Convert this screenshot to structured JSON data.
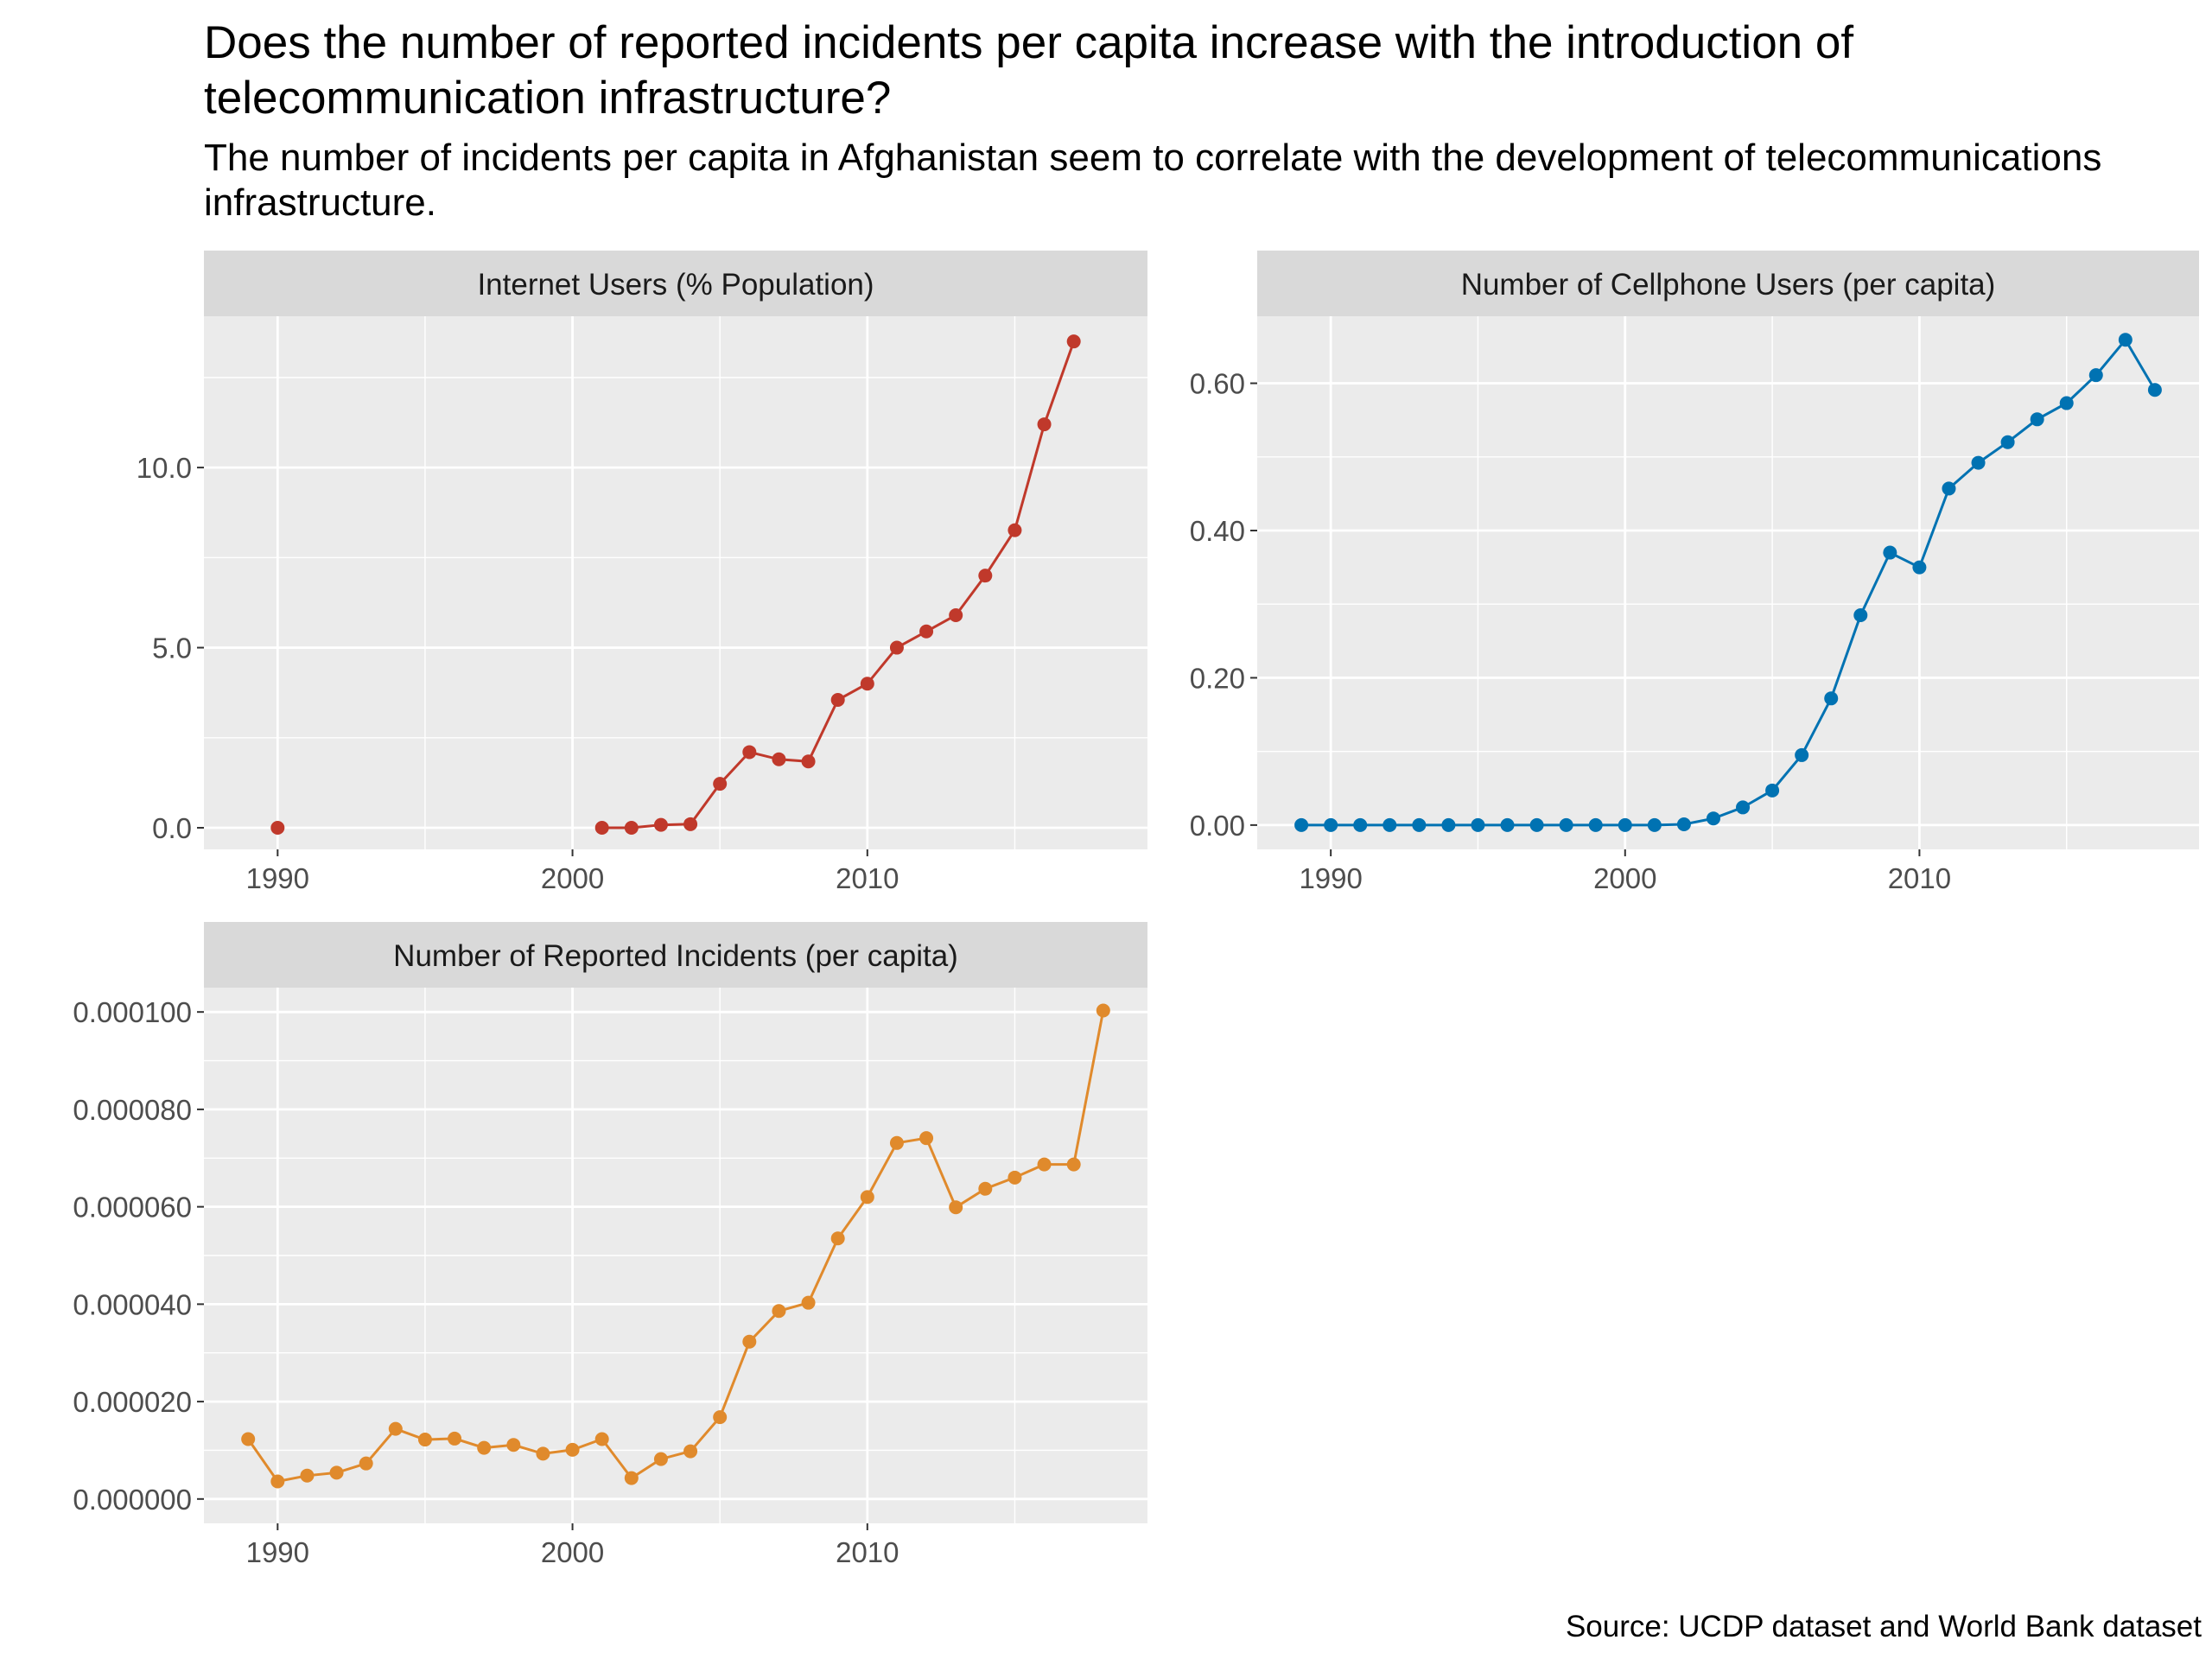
{
  "title": "Does the number of reported incidents per capita increase with the introduction of telecommunication infrastructure?",
  "subtitle": "The number of incidents per capita in Afghanistan seem to correlate with the development of telecommunications infrastructure.",
  "caption": "Source: UCDP dataset and World Bank dataset",
  "chart_data": [
    {
      "type": "line",
      "title": "Internet Users (% Population)",
      "xlabel": "",
      "ylabel": "",
      "color": "#C0392B",
      "grid": true,
      "xlim": [
        1987.5,
        2019.5
      ],
      "ylim": [
        -0.6,
        14.2
      ],
      "xticks": [
        1990,
        2000,
        2010
      ],
      "xtick_labels": [
        "1990",
        "2000",
        "2010"
      ],
      "yticks": [
        0,
        5,
        10
      ],
      "ytick_labels": [
        "0.0",
        "5.0",
        "10.0"
      ],
      "x": [
        1990,
        2001,
        2002,
        2003,
        2004,
        2005,
        2006,
        2007,
        2008,
        2009,
        2010,
        2011,
        2012,
        2013,
        2014,
        2015,
        2016,
        2017
      ],
      "values": [
        0.0,
        0.0,
        0.0,
        0.08,
        0.1,
        1.22,
        2.1,
        1.9,
        1.84,
        3.55,
        4.0,
        5.0,
        5.45,
        5.9,
        7.0,
        8.26,
        11.2,
        13.5
      ],
      "segments": [
        [
          1,
          17
        ]
      ]
    },
    {
      "type": "line",
      "title": "Number of Cellphone Users (per capita)",
      "xlabel": "",
      "ylabel": "",
      "color": "#0072B2",
      "grid": true,
      "xlim": [
        1987.5,
        2019.5
      ],
      "ylim": [
        -0.033,
        0.691
      ],
      "xticks": [
        1990,
        2000,
        2010
      ],
      "xtick_labels": [
        "1990",
        "2000",
        "2010"
      ],
      "yticks": [
        0,
        0.2,
        0.4,
        0.6
      ],
      "ytick_labels": [
        "0.00",
        "0.20",
        "0.40",
        "0.60"
      ],
      "x": [
        1989,
        1990,
        1991,
        1992,
        1993,
        1994,
        1995,
        1996,
        1997,
        1998,
        1999,
        2000,
        2001,
        2002,
        2003,
        2004,
        2005,
        2006,
        2007,
        2008,
        2009,
        2010,
        2011,
        2012,
        2013,
        2014,
        2015,
        2016,
        2017,
        2018
      ],
      "values": [
        0,
        0,
        0,
        0,
        0,
        0,
        0,
        0,
        0,
        0,
        0,
        0,
        0,
        0.001,
        0.009,
        0.024,
        0.047,
        0.095,
        0.172,
        0.285,
        0.37,
        0.35,
        0.457,
        0.492,
        0.52,
        0.551,
        0.573,
        0.611,
        0.659,
        0.591
      ],
      "segments": [
        [
          0,
          29
        ]
      ]
    },
    {
      "type": "line",
      "title": "Number of Reported Incidents (per capita)",
      "xlabel": "",
      "ylabel": "",
      "color": "#E08A2C",
      "grid": true,
      "xlim": [
        1987.5,
        2019.5
      ],
      "ylim": [
        -5e-06,
        0.000105
      ],
      "xticks": [
        1990,
        2000,
        2010
      ],
      "xtick_labels": [
        "1990",
        "2000",
        "2010"
      ],
      "yticks": [
        0,
        2e-05,
        4e-05,
        6e-05,
        8e-05,
        0.0001
      ],
      "ytick_labels": [
        "0.000000",
        "0.000020",
        "0.000040",
        "0.000060",
        "0.000080",
        "0.000100"
      ],
      "x": [
        1989,
        1990,
        1991,
        1992,
        1993,
        1994,
        1995,
        1996,
        1997,
        1998,
        1999,
        2000,
        2001,
        2002,
        2003,
        2004,
        2005,
        2006,
        2007,
        2008,
        2009,
        2010,
        2011,
        2012,
        2013,
        2014,
        2015,
        2016,
        2017,
        2018
      ],
      "values": [
        1.23e-05,
        3.6e-06,
        4.8e-06,
        5.4e-06,
        7.3e-06,
        1.44e-05,
        1.22e-05,
        1.24e-05,
        1.05e-05,
        1.11e-05,
        9.3e-06,
        1.01e-05,
        1.23e-05,
        4.3e-06,
        8.2e-06,
        9.8e-06,
        1.68e-05,
        3.23e-05,
        3.86e-05,
        4.03e-05,
        5.35e-05,
        6.2e-05,
        7.31e-05,
        7.41e-05,
        5.99e-05,
        6.37e-05,
        6.6e-05,
        6.87e-05,
        6.87e-05,
        0.0001003
      ],
      "segments": [
        [
          0,
          29
        ]
      ]
    }
  ]
}
